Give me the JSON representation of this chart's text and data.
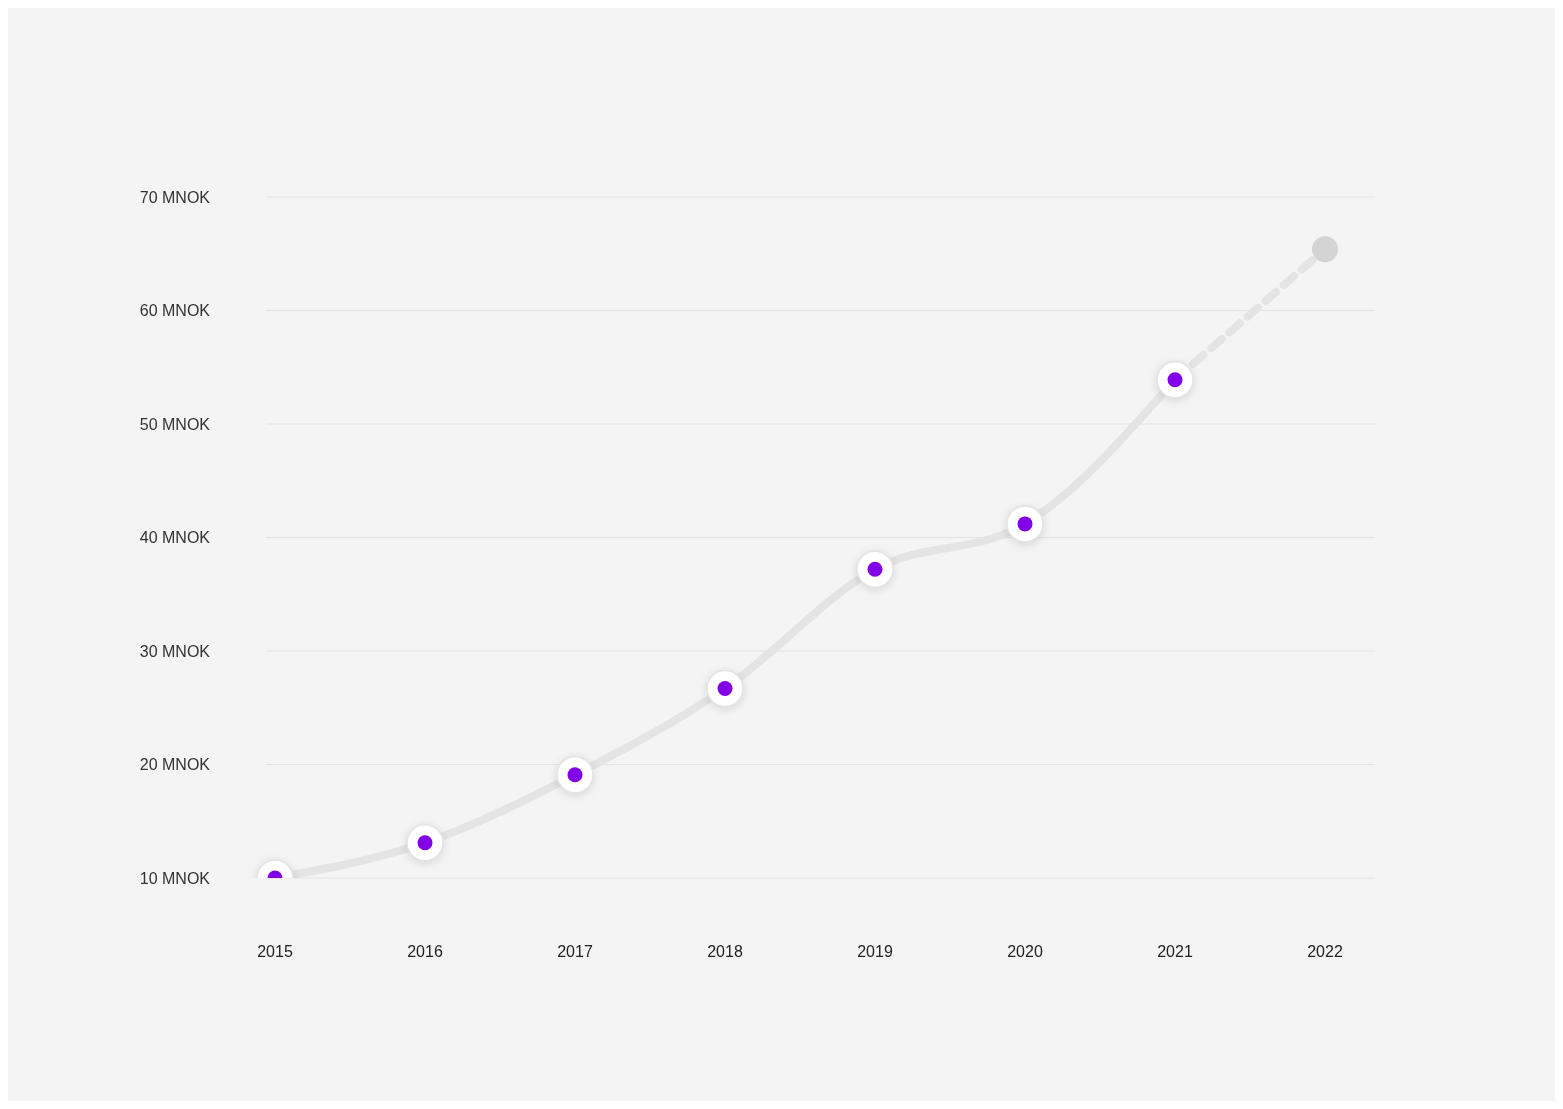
{
  "chart_data": {
    "type": "line",
    "categories": [
      "2015",
      "2016",
      "2017",
      "2018",
      "2019",
      "2020",
      "2021",
      "2022"
    ],
    "series": [
      {
        "type": "line",
        "color": "#e4e4e4",
        "values": [
          10,
          13.1,
          19.1,
          26.7,
          37.2,
          41.2,
          53.9,
          null
        ],
        "marker": "circle",
        "line_style": "solid"
      },
      {
        "color": "#e4e4e4",
        "values": [
          null,
          null,
          null,
          null,
          null,
          null,
          53.9,
          65.4
        ],
        "line_style": "dashed"
      },
      {
        "type": "scatter",
        "color": "#8200e8",
        "values": [
          10,
          13.1,
          19.1,
          26.7,
          37.2,
          41.2,
          53.9,
          null
        ],
        "marker": "circle"
      },
      {
        "color": "#d4d4d4",
        "values": [
          null,
          null,
          null,
          null,
          null,
          null,
          null,
          65.4
        ],
        "marker": "circle",
        "line_style": "solid"
      }
    ],
    "ylim": [
      10,
      70
    ],
    "yticks": [
      {
        "value": 10,
        "label": "10 MNOK"
      },
      {
        "value": 20,
        "label": "20 MNOK"
      },
      {
        "value": 30,
        "label": "30 MNOK"
      },
      {
        "value": 40,
        "label": "40 MNOK"
      },
      {
        "value": 50,
        "label": "50 MNOK"
      },
      {
        "value": 60,
        "label": "60 MNOK"
      },
      {
        "value": 70,
        "label": "70 MNOK"
      }
    ],
    "grid": "y",
    "legend": false
  }
}
